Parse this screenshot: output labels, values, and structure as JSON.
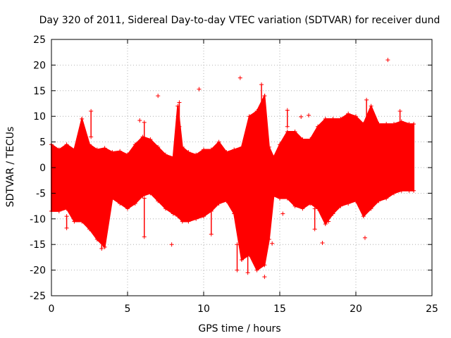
{
  "chart_data": {
    "type": "scatter",
    "title": "Day 320 of 2011, Sidereal Day-to-day VTEC variation (SDTVAR) for receiver dund",
    "xlabel": "GPS time / hours",
    "ylabel": "SDTVAR / TECUs",
    "xlim": [
      0,
      25
    ],
    "ylim": [
      -25,
      25
    ],
    "x_ticks": [
      0,
      5,
      10,
      15,
      20,
      25
    ],
    "y_ticks": [
      -25,
      -20,
      -15,
      -10,
      -5,
      0,
      5,
      10,
      15,
      20,
      25
    ],
    "x_tick_labels": [
      "0",
      "5",
      "10",
      "15",
      "20",
      "25"
    ],
    "y_tick_labels": [
      "-25",
      "-20",
      "-15",
      "-10",
      "-5",
      "0",
      "5",
      "10",
      "15",
      "20",
      "25"
    ],
    "grid": true,
    "marker": "+",
    "series_color": "#ff0000",
    "envelope": {
      "t": [
        0.0,
        0.5,
        1.0,
        1.5,
        2.0,
        2.5,
        3.0,
        3.5,
        4.0,
        4.5,
        5.0,
        5.5,
        6.0,
        6.5,
        7.0,
        7.5,
        8.0,
        8.3,
        8.6,
        9.0,
        9.5,
        10.0,
        10.5,
        11.0,
        11.5,
        12.0,
        12.5,
        13.0,
        13.5,
        14.0,
        14.3,
        14.6,
        15.0,
        15.5,
        16.0,
        16.5,
        17.0,
        17.5,
        18.0,
        18.5,
        19.0,
        19.5,
        20.0,
        20.5,
        21.0,
        21.5,
        22.0,
        22.5,
        23.0,
        23.5,
        23.8
      ],
      "upper": [
        4.5,
        3.5,
        4.5,
        3.5,
        9.5,
        4.5,
        3.5,
        3.8,
        3.0,
        3.2,
        2.5,
        4.5,
        6.0,
        5.5,
        4.0,
        2.5,
        2.0,
        12.0,
        4.0,
        3.0,
        2.5,
        3.5,
        3.5,
        5.0,
        3.0,
        3.5,
        4.0,
        10.0,
        11.0,
        14.0,
        4.0,
        2.0,
        4.5,
        7.0,
        7.0,
        5.5,
        5.5,
        8.0,
        9.5,
        9.5,
        9.5,
        10.5,
        10.0,
        8.5,
        12.0,
        8.5,
        8.5,
        8.5,
        9.0,
        8.5,
        8.5
      ],
      "lower": [
        -8.5,
        -8.5,
        -8.0,
        -10.5,
        -10.5,
        -12.0,
        -14.0,
        -15.5,
        -6.0,
        -7.0,
        -8.0,
        -7.0,
        -5.5,
        -5.0,
        -6.5,
        -8.0,
        -9.0,
        -9.5,
        -10.5,
        -10.5,
        -10.0,
        -9.5,
        -8.5,
        -7.0,
        -6.5,
        -9.0,
        -18.0,
        -17.0,
        -20.0,
        -19.0,
        -14.0,
        -5.5,
        -6.0,
        -6.0,
        -7.5,
        -8.0,
        -7.0,
        -8.0,
        -11.0,
        -9.0,
        -7.5,
        -7.0,
        -6.5,
        -9.5,
        -8.0,
        -6.5,
        -6.0,
        -5.0,
        -4.5,
        -4.5,
        -4.5
      ]
    },
    "outliers": [
      {
        "x": 7.0,
        "y": 14.0
      },
      {
        "x": 9.7,
        "y": 15.3
      },
      {
        "x": 12.4,
        "y": 17.5
      },
      {
        "x": 22.1,
        "y": 21.0
      },
      {
        "x": 7.9,
        "y": -15.0
      },
      {
        "x": 14.0,
        "y": -21.3
      },
      {
        "x": 14.5,
        "y": -14.8
      },
      {
        "x": 17.8,
        "y": -14.7
      },
      {
        "x": 20.6,
        "y": -13.7
      },
      {
        "x": 15.2,
        "y": -9.0
      },
      {
        "x": 5.8,
        "y": 9.2
      },
      {
        "x": 8.3,
        "y": 4.0
      },
      {
        "x": 16.4,
        "y": 9.9
      },
      {
        "x": 16.9,
        "y": 10.2
      }
    ],
    "spikes": [
      {
        "x": 1.0,
        "lo": -11.8,
        "hi": -9.5
      },
      {
        "x": 2.6,
        "lo": 6.0,
        "hi": 11.0
      },
      {
        "x": 3.3,
        "lo": -15.8,
        "hi": -12.0
      },
      {
        "x": 6.1,
        "lo": -13.5,
        "hi": -6.0
      },
      {
        "x": 6.1,
        "lo": 5.0,
        "hi": 8.8
      },
      {
        "x": 8.4,
        "lo": 8.0,
        "hi": 12.7
      },
      {
        "x": 10.5,
        "lo": -13.0,
        "hi": -8.0
      },
      {
        "x": 12.2,
        "lo": -20.0,
        "hi": -15.0
      },
      {
        "x": 12.9,
        "lo": -20.5,
        "hi": -14.0
      },
      {
        "x": 13.8,
        "lo": 10.0,
        "hi": 16.2
      },
      {
        "x": 14.0,
        "lo": -17.0,
        "hi": -12.0
      },
      {
        "x": 15.5,
        "lo": 8.0,
        "hi": 11.2
      },
      {
        "x": 17.3,
        "lo": -12.0,
        "hi": -8.0
      },
      {
        "x": 18.2,
        "lo": -10.5,
        "hi": -7.0
      },
      {
        "x": 20.7,
        "lo": 9.0,
        "hi": 13.2
      },
      {
        "x": 22.9,
        "lo": 8.5,
        "hi": 11.0
      }
    ]
  }
}
